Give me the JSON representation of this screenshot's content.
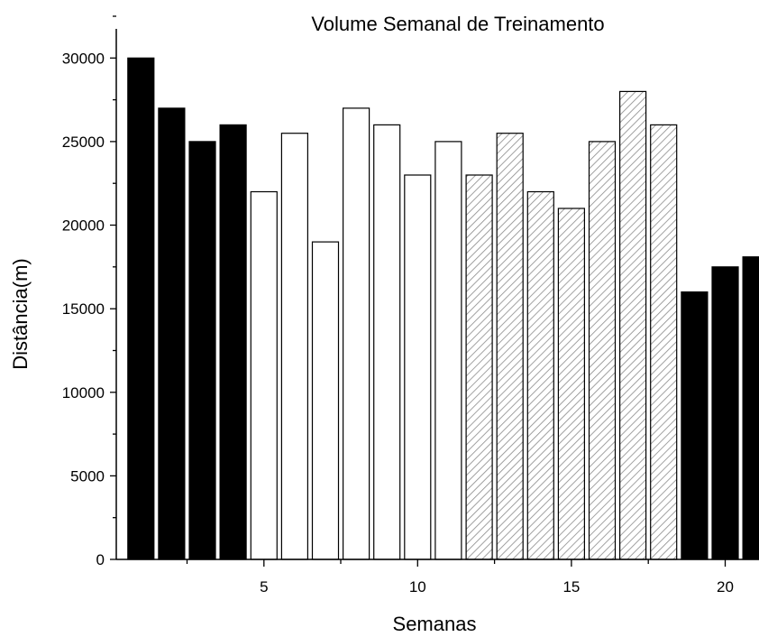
{
  "chart_data": {
    "type": "bar",
    "title": "Volume Semanal de Treinamento",
    "xlabel": "Semanas",
    "ylabel": "Distância(m)",
    "x": [
      1,
      2,
      3,
      4,
      5,
      6,
      7,
      8,
      9,
      10,
      11,
      12,
      13,
      14,
      15,
      16,
      17,
      18,
      19,
      20,
      21
    ],
    "values": [
      30000,
      27000,
      25000,
      26000,
      22000,
      25500,
      19000,
      27000,
      26000,
      23000,
      25000,
      23000,
      25500,
      22000,
      21000,
      25000,
      28000,
      26000,
      16000,
      17500,
      18100
    ],
    "fills": [
      "solid",
      "solid",
      "solid",
      "solid",
      "white",
      "white",
      "white",
      "white",
      "white",
      "white",
      "white",
      "hatched",
      "hatched",
      "hatched",
      "hatched",
      "hatched",
      "hatched",
      "hatched",
      "solid",
      "solid",
      "solid"
    ],
    "xticks": [
      5,
      10,
      15,
      20
    ],
    "yticks": [
      0,
      5000,
      10000,
      15000,
      20000,
      25000,
      30000
    ],
    "ylim": [
      0,
      32500
    ],
    "xlim": [
      0.2,
      21.1
    ],
    "grid": false,
    "colors": {
      "solid": "#000000",
      "white": "#ffffff",
      "hatch": "#888888",
      "axis": "#000000"
    }
  }
}
